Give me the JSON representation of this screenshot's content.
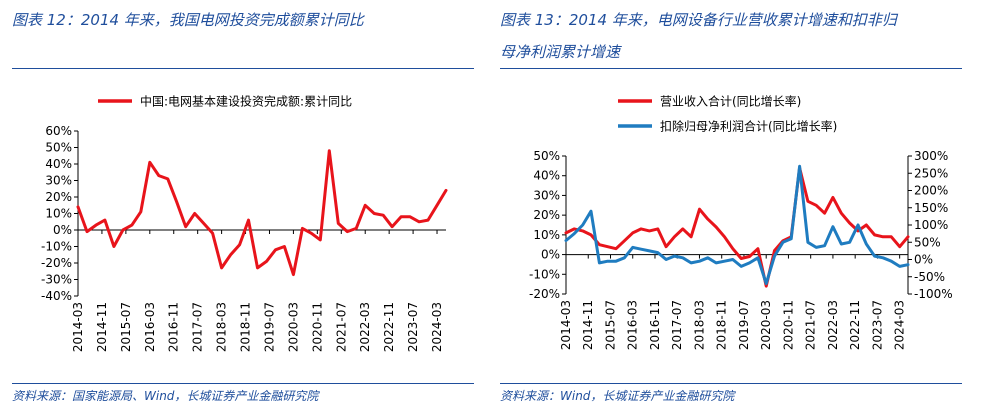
{
  "left": {
    "title": "图表 12：2014 年来，我国电网投资完成额累计同比",
    "source": "资料来源：国家能源局、Wind，长城证券产业金融研究院"
  },
  "right": {
    "title_line1": "图表 13：2014 年来，电网设备行业营收累计增速和扣非归",
    "title_line2": "母净利润累计增速",
    "source": "资料来源：Wind，长城证券产业金融研究院"
  },
  "colors": {
    "red": "#e8141b",
    "blue": "#1f7cc0",
    "title_blue": "#1f4e9c"
  },
  "chart_data": [
    {
      "type": "line",
      "legend_position": "top",
      "grid": false,
      "x_tick_labels": [
        "2014-03",
        "2014-11",
        "2015-07",
        "2016-03",
        "2016-11",
        "2017-07",
        "2018-03",
        "2018-11",
        "2019-07",
        "2020-03",
        "2020-11",
        "2021-07",
        "2022-03",
        "2022-11",
        "2023-07",
        "2024-03"
      ],
      "y_tick_labels": [
        "60%",
        "50%",
        "40%",
        "30%",
        "20%",
        "10%",
        "0%",
        "-10%",
        "-20%",
        "-30%",
        "-40%"
      ],
      "ylim": [
        -40,
        60
      ],
      "series": [
        {
          "name": "中国:电网基本建设投资完成额:累计同比",
          "color": "#e8141b",
          "x": [
            "2014-03",
            "2014-06",
            "2014-09",
            "2014-12",
            "2015-03",
            "2015-06",
            "2015-09",
            "2015-12",
            "2016-03",
            "2016-06",
            "2016-09",
            "2016-12",
            "2017-03",
            "2017-06",
            "2017-09",
            "2017-12",
            "2018-03",
            "2018-06",
            "2018-09",
            "2018-12",
            "2019-03",
            "2019-06",
            "2019-09",
            "2019-12",
            "2020-03",
            "2020-06",
            "2020-09",
            "2020-12",
            "2021-03",
            "2021-06",
            "2021-09",
            "2021-12",
            "2022-03",
            "2022-06",
            "2022-09",
            "2022-12",
            "2023-03",
            "2023-06",
            "2023-09",
            "2023-12",
            "2024-03",
            "2024-06"
          ],
          "values": [
            14,
            -1,
            3,
            6,
            -10,
            0,
            3,
            11,
            41,
            33,
            31,
            17,
            2,
            10,
            4,
            -2,
            -23,
            -15,
            -9,
            6,
            -23,
            -19,
            -12,
            -10,
            -27,
            1,
            -2,
            -6,
            48,
            4,
            -1,
            1,
            15,
            10,
            9,
            2,
            8,
            8,
            5,
            6,
            15,
            24
          ]
        }
      ]
    },
    {
      "type": "line",
      "legend_position": "top",
      "grid": false,
      "x_tick_labels": [
        "2014-03",
        "2014-11",
        "2015-07",
        "2016-03",
        "2016-11",
        "2017-07",
        "2018-03",
        "2018-11",
        "2019-07",
        "2020-03",
        "2020-11",
        "2021-07",
        "2022-03",
        "2022-11",
        "2023-07",
        "2024-03"
      ],
      "y_left_tick_labels": [
        "50%",
        "40%",
        "30%",
        "20%",
        "10%",
        "0%",
        "-10%",
        "-20%"
      ],
      "y_right_tick_labels": [
        "300%",
        "250%",
        "200%",
        "150%",
        "100%",
        "50%",
        "0%",
        "-50%",
        "-100%"
      ],
      "ylim_left": [
        -20,
        50
      ],
      "ylim_right": [
        -100,
        300
      ],
      "series": [
        {
          "name": "营业收入合计(同比增长率)",
          "axis": "left",
          "color": "#e8141b",
          "x": [
            "2014-03",
            "2014-06",
            "2014-09",
            "2014-12",
            "2015-03",
            "2015-06",
            "2015-09",
            "2015-12",
            "2016-03",
            "2016-06",
            "2016-09",
            "2016-12",
            "2017-03",
            "2017-06",
            "2017-09",
            "2017-12",
            "2018-03",
            "2018-06",
            "2018-09",
            "2018-12",
            "2019-03",
            "2019-06",
            "2019-09",
            "2019-12",
            "2020-03",
            "2020-06",
            "2020-09",
            "2020-12",
            "2021-03",
            "2021-06",
            "2021-09",
            "2021-12",
            "2022-03",
            "2022-06",
            "2022-09",
            "2022-12",
            "2023-03",
            "2023-06",
            "2023-09",
            "2023-12",
            "2024-03",
            "2024-06"
          ],
          "values": [
            11,
            13,
            12,
            10,
            5,
            4,
            3,
            7,
            11,
            13,
            12,
            13,
            4,
            9,
            13,
            9,
            23,
            18,
            14,
            9,
            3,
            -2,
            -1,
            3,
            -16,
            2,
            7,
            9,
            44,
            27,
            25,
            21,
            29,
            21,
            16,
            12,
            15,
            10,
            9,
            9,
            4,
            9
          ]
        },
        {
          "name": "扣除归母净利润合计(同比增长率)",
          "axis": "right",
          "color": "#1f7cc0",
          "x": [
            "2014-03",
            "2014-06",
            "2014-09",
            "2014-12",
            "2015-03",
            "2015-06",
            "2015-09",
            "2015-12",
            "2016-03",
            "2016-06",
            "2016-09",
            "2016-12",
            "2017-03",
            "2017-06",
            "2017-09",
            "2017-12",
            "2018-03",
            "2018-06",
            "2018-09",
            "2018-12",
            "2019-03",
            "2019-06",
            "2019-09",
            "2019-12",
            "2020-03",
            "2020-06",
            "2020-09",
            "2020-12",
            "2021-03",
            "2021-06",
            "2021-09",
            "2021-12",
            "2022-03",
            "2022-06",
            "2022-09",
            "2022-12",
            "2023-03",
            "2023-06",
            "2023-09",
            "2023-12",
            "2024-03",
            "2024-06"
          ],
          "values": [
            55,
            75,
            100,
            140,
            -10,
            -5,
            -5,
            5,
            35,
            30,
            25,
            20,
            0,
            10,
            5,
            -10,
            -5,
            5,
            -10,
            -5,
            0,
            -20,
            -10,
            5,
            -70,
            10,
            50,
            60,
            270,
            50,
            35,
            40,
            95,
            45,
            50,
            100,
            45,
            10,
            5,
            -5,
            -20,
            -15
          ]
        }
      ]
    }
  ]
}
